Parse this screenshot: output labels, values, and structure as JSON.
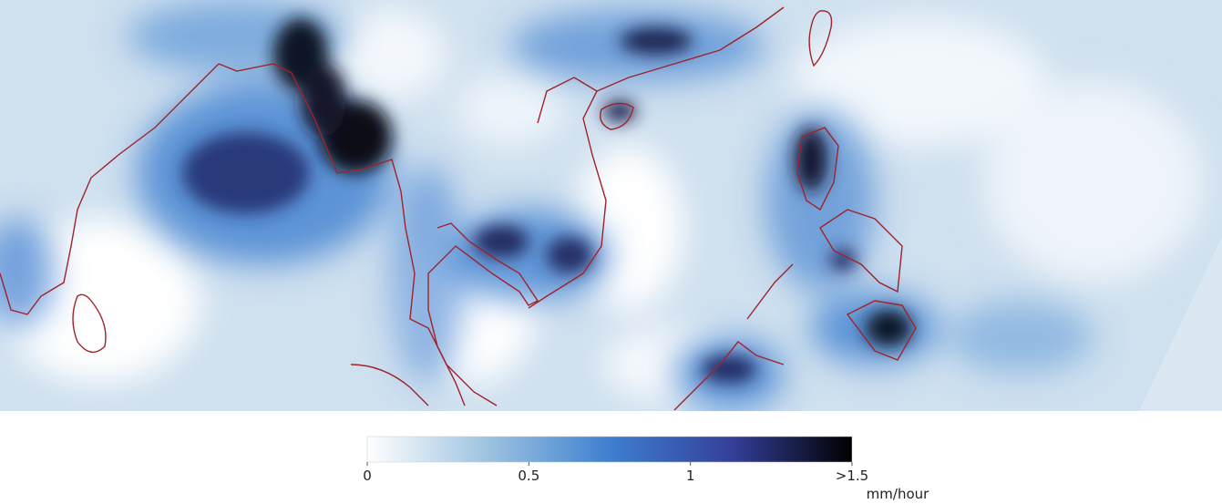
{
  "map": {
    "colorbar": {
      "lim": [
        0,
        1.5
      ],
      "ticks": [
        0,
        0.5,
        1,
        {
          "value": 1.5,
          "label": ">1.5"
        }
      ],
      "unit": "mm/hour",
      "colors": [
        "#ffffff",
        "#9cc3e0",
        "#3f7fd0",
        "#34409a",
        "#000000"
      ]
    }
  }
}
